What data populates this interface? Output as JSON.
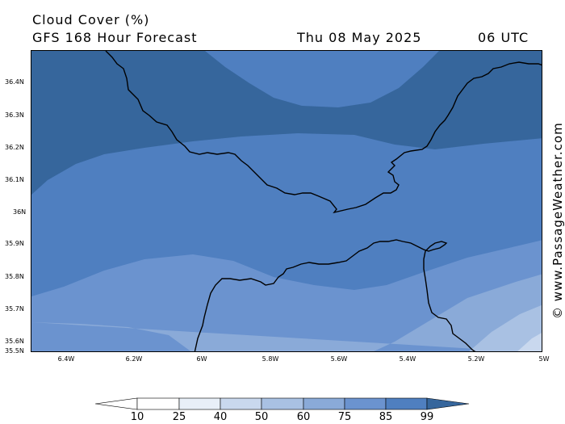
{
  "header": {
    "title": "Cloud Cover (%)",
    "subtitle": "GFS 168 Hour Forecast",
    "date": "Thu 08 May 2025",
    "time": "06 UTC"
  },
  "credit": "© www.PassageWeather.com",
  "axes": {
    "lat_labels": [
      "36.4N",
      "36.3N",
      "36.2N",
      "36.1N",
      "36N",
      "35.9N",
      "35.8N",
      "35.7N",
      "35.6N",
      "35.5N"
    ],
    "lon_labels": [
      "6.4W",
      "6.2W",
      "6W",
      "5.8W",
      "5.6W",
      "5.4W",
      "5.2W",
      "5W"
    ]
  },
  "legend": {
    "labels": [
      "10",
      "25",
      "40",
      "50",
      "60",
      "75",
      "85",
      "99"
    ],
    "colors": [
      "#ffffff",
      "#e8eff8",
      "#c9d8ee",
      "#a9c1e3",
      "#8aaad8",
      "#6b93cf",
      "#4f7fc0",
      "#36669c"
    ]
  },
  "map": {
    "lat_range": [
      35.5,
      36.5
    ],
    "lon_range": [
      -6.5,
      -5.0
    ],
    "coastline_color": "#000000"
  }
}
